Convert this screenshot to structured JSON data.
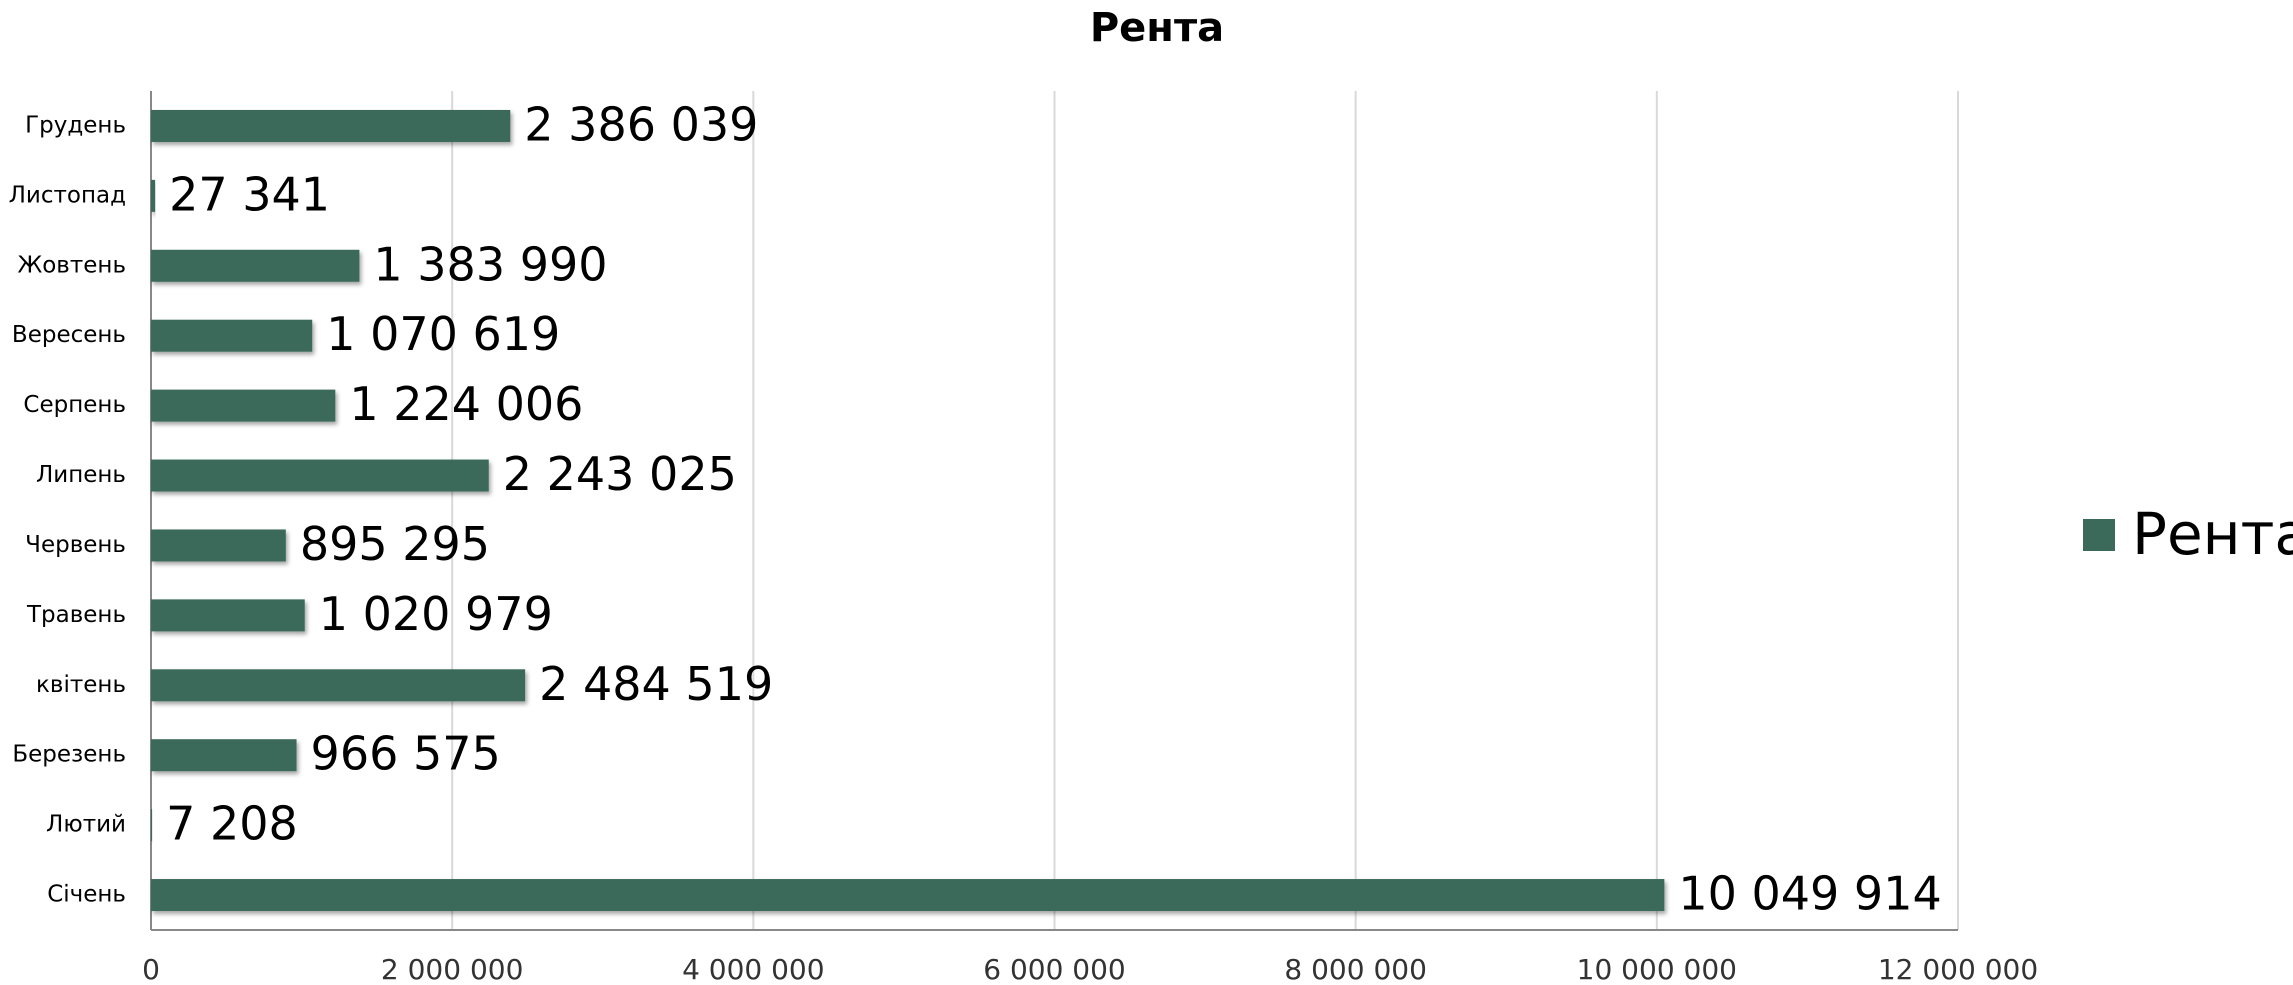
{
  "chart_data": {
    "type": "bar",
    "orientation": "horizontal",
    "title": "Рента",
    "categories": [
      "Січень",
      "Лютий",
      "Березень",
      "квітень",
      "Травень",
      "Червень",
      "Липень",
      "Серпень",
      "Вересень",
      "Жовтень",
      "Листопад",
      "Грудень"
    ],
    "series": [
      {
        "name": "Рента",
        "color": "#3b6a5a",
        "values": [
          10049914,
          7208,
          966575,
          2484519,
          1020979,
          895295,
          2243025,
          1224006,
          1070619,
          1383990,
          27341,
          2386039
        ],
        "value_labels": [
          "10 049 914",
          "7 208",
          "966 575",
          "2 484 519",
          "1 020 979",
          "895 295",
          "2 243 025",
          "1 224 006",
          "1 070 619",
          "1 383 990",
          "27 341",
          "2 386 039"
        ]
      }
    ],
    "xlim": [
      0,
      12000000
    ],
    "xticks": [
      0,
      {
        "value": 2000000,
        "label": "2 000 000"
      },
      {
        "value": 4000000,
        "label": "4 000 000"
      },
      {
        "value": 6000000,
        "label": "6 000 000"
      },
      {
        "value": 8000000,
        "label": "8 000 000"
      },
      {
        "value": 10000000,
        "label": "10 000 000"
      },
      {
        "value": 12000000,
        "label": "12 000 000"
      }
    ],
    "grid": true,
    "legend": "right"
  }
}
